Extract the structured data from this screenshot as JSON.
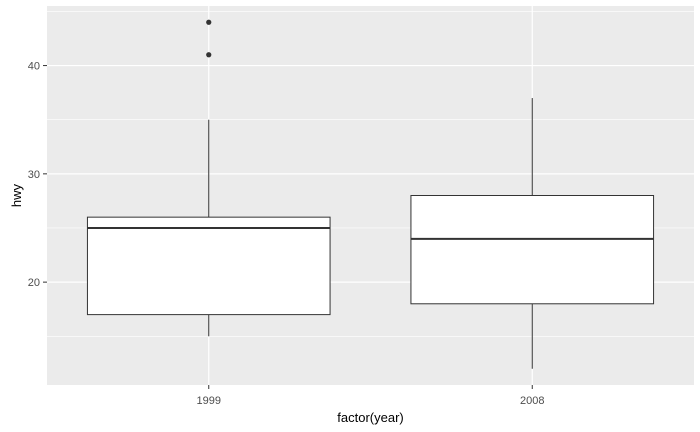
{
  "chart_data": {
    "type": "boxplot",
    "xlabel": "factor(year)",
    "ylabel": "hwy",
    "categories": [
      "1999",
      "2008"
    ],
    "ylim": [
      10.5,
      45.5
    ],
    "y_ticks": [
      20,
      30,
      40
    ],
    "y_tick_labels": [
      "20",
      "30",
      "40"
    ],
    "grid": true,
    "boxes": [
      {
        "category": "1999",
        "whisker_low": 15,
        "q1": 17,
        "median": 25,
        "q3": 26,
        "whisker_high": 35,
        "outliers": [
          41,
          44
        ]
      },
      {
        "category": "2008",
        "whisker_low": 12,
        "q1": 18,
        "median": 24,
        "q3": 28,
        "whisker_high": 37,
        "outliers": []
      }
    ],
    "colors": {
      "panel": "#ebebeb",
      "grid": "#ffffff",
      "box_fill": "#ffffff",
      "line": "#333333"
    }
  }
}
